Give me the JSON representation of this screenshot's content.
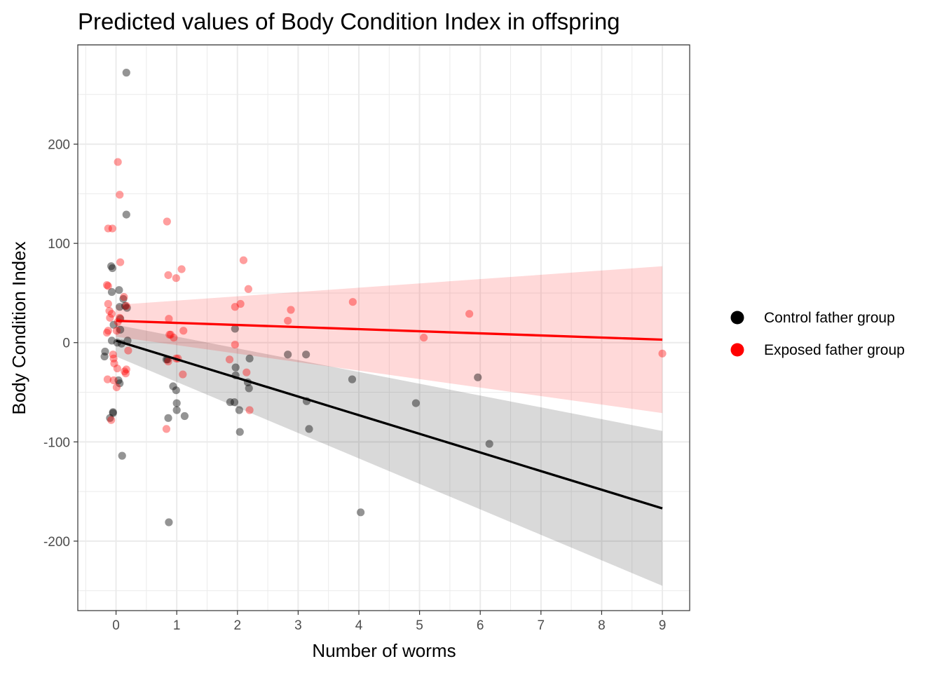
{
  "chart_data": {
    "type": "scatter",
    "title": "Predicted values of Body Condition Index in offspring",
    "xlabel": "Number of worms",
    "ylabel": "Body Condition Index",
    "xlim": [
      -0.63,
      9.45
    ],
    "ylim": [
      -270,
      300
    ],
    "x_ticks": [
      "0",
      "1",
      "2",
      "3",
      "4",
      "5",
      "6",
      "7",
      "8",
      "9"
    ],
    "y_ticks": [
      "-200",
      "-100",
      "0",
      "100",
      "200"
    ],
    "grid": true,
    "legend_position": "right",
    "series": [
      {
        "name": "Control father group",
        "color": "#000000",
        "points": [
          [
            0.17,
            272
          ],
          [
            0.17,
            129
          ],
          [
            -0.08,
            77
          ],
          [
            -0.06,
            75
          ],
          [
            0.05,
            53
          ],
          [
            -0.07,
            51
          ],
          [
            0.12,
            44
          ],
          [
            0.06,
            36
          ],
          [
            0.15,
            37
          ],
          [
            0.18,
            35
          ],
          [
            0.07,
            24
          ],
          [
            -0.04,
            18
          ],
          [
            0.07,
            13
          ],
          [
            -0.07,
            2
          ],
          [
            0.19,
            2
          ],
          [
            0.02,
            0
          ],
          [
            0.09,
            -1
          ],
          [
            -0.18,
            -9
          ],
          [
            -0.19,
            -14
          ],
          [
            0.04,
            -38
          ],
          [
            0.06,
            -41
          ],
          [
            -0.05,
            -70
          ],
          [
            -0.05,
            -71
          ],
          [
            -0.1,
            -76
          ],
          [
            0.1,
            -114
          ],
          [
            0.83,
            -17
          ],
          [
            0.85,
            -17
          ],
          [
            0.94,
            -44
          ],
          [
            0.99,
            -48
          ],
          [
            1.0,
            -61
          ],
          [
            1.0,
            -68
          ],
          [
            1.13,
            -74
          ],
          [
            0.86,
            -76
          ],
          [
            0.87,
            -181
          ],
          [
            1.96,
            14
          ],
          [
            1.97,
            -25
          ],
          [
            1.97,
            -33
          ],
          [
            2.17,
            -40
          ],
          [
            2.19,
            -46
          ],
          [
            2.2,
            -16
          ],
          [
            1.88,
            -60
          ],
          [
            1.95,
            -60
          ],
          [
            2.03,
            -68
          ],
          [
            2.04,
            -90
          ],
          [
            2.83,
            -12
          ],
          [
            3.13,
            -12
          ],
          [
            3.14,
            -59
          ],
          [
            3.18,
            -87
          ],
          [
            3.89,
            -37
          ],
          [
            4.03,
            -171
          ],
          [
            4.94,
            -61
          ],
          [
            5.96,
            -35
          ],
          [
            6.15,
            -102
          ]
        ],
        "fit": {
          "x": [
            0,
            9
          ],
          "y": [
            2,
            -167
          ]
        },
        "ci_upper": [
          [
            0,
            18
          ],
          [
            9,
            -89
          ]
        ],
        "ci_lower": [
          [
            0,
            -14
          ],
          [
            9,
            -245
          ]
        ]
      },
      {
        "name": "Exposed father group",
        "color": "#ff0000",
        "points": [
          [
            0.03,
            182
          ],
          [
            0.06,
            149
          ],
          [
            -0.13,
            115
          ],
          [
            -0.06,
            115
          ],
          [
            0.07,
            81
          ],
          [
            -0.15,
            58
          ],
          [
            -0.13,
            57
          ],
          [
            0.13,
            46
          ],
          [
            -0.13,
            39
          ],
          [
            -0.11,
            32
          ],
          [
            -0.07,
            29
          ],
          [
            0.17,
            37
          ],
          [
            -0.1,
            25
          ],
          [
            0.06,
            25
          ],
          [
            0.03,
            21
          ],
          [
            -0.13,
            12
          ],
          [
            -0.15,
            10
          ],
          [
            0.01,
            12
          ],
          [
            -0.05,
            -12
          ],
          [
            -0.04,
            -16
          ],
          [
            -0.03,
            -21
          ],
          [
            0.2,
            -8
          ],
          [
            0.02,
            -26
          ],
          [
            0.14,
            -29
          ],
          [
            0.17,
            -27
          ],
          [
            0.16,
            -31
          ],
          [
            -0.14,
            -37
          ],
          [
            -0.04,
            -38
          ],
          [
            0.01,
            -45
          ],
          [
            -0.08,
            -78
          ],
          [
            0.84,
            122
          ],
          [
            1.08,
            74
          ],
          [
            0.86,
            68
          ],
          [
            0.99,
            65
          ],
          [
            0.87,
            24
          ],
          [
            1.11,
            12
          ],
          [
            0.88,
            8
          ],
          [
            0.9,
            8
          ],
          [
            0.95,
            5
          ],
          [
            0.99,
            -16
          ],
          [
            1.02,
            -16
          ],
          [
            0.86,
            -19
          ],
          [
            1.1,
            -32
          ],
          [
            0.83,
            -87
          ],
          [
            2.1,
            83
          ],
          [
            2.18,
            54
          ],
          [
            2.05,
            39
          ],
          [
            1.96,
            36
          ],
          [
            1.96,
            -2
          ],
          [
            1.87,
            -17
          ],
          [
            2.15,
            -30
          ],
          [
            2.2,
            -68
          ],
          [
            2.88,
            33
          ],
          [
            2.83,
            22
          ],
          [
            3.9,
            41
          ],
          [
            5.07,
            5
          ],
          [
            5.82,
            29
          ],
          [
            9.0,
            -11
          ]
        ],
        "fit": {
          "x": [
            0,
            9
          ],
          "y": [
            22,
            3
          ]
        },
        "ci_upper": [
          [
            0,
            38
          ],
          [
            9,
            77
          ]
        ],
        "ci_lower": [
          [
            0,
            6
          ],
          [
            9,
            -71
          ]
        ]
      }
    ]
  }
}
